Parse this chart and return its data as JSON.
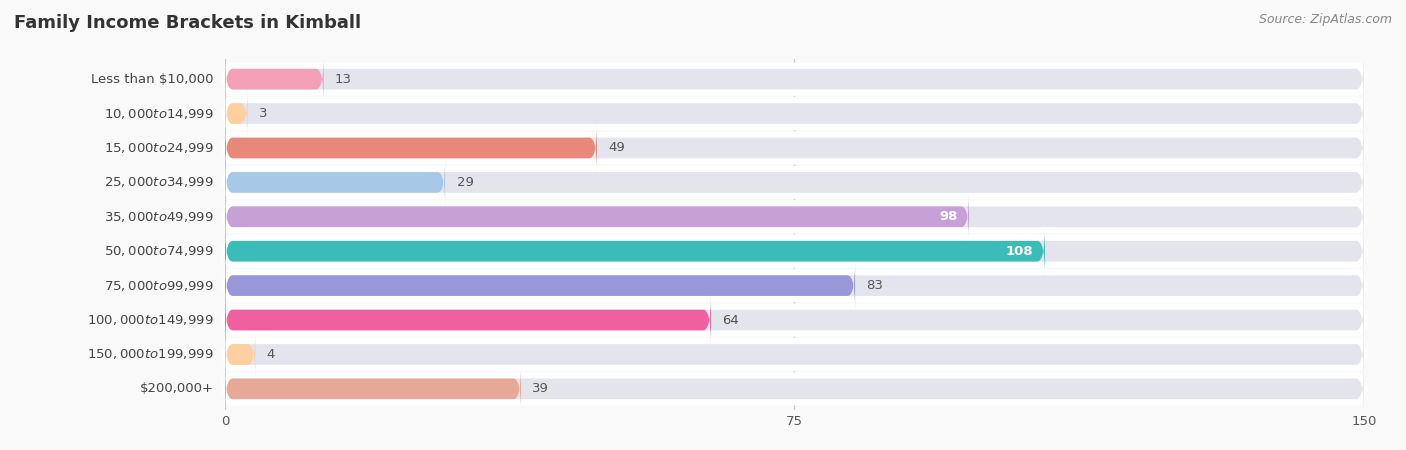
{
  "title": "Family Income Brackets in Kimball",
  "source": "Source: ZipAtlas.com",
  "categories": [
    "Less than $10,000",
    "$10,000 to $14,999",
    "$15,000 to $24,999",
    "$25,000 to $34,999",
    "$35,000 to $49,999",
    "$50,000 to $74,999",
    "$75,000 to $99,999",
    "$100,000 to $149,999",
    "$150,000 to $199,999",
    "$200,000+"
  ],
  "values": [
    13,
    3,
    49,
    29,
    98,
    108,
    83,
    64,
    4,
    39
  ],
  "bar_colors": [
    "#F4A0B8",
    "#FECFA0",
    "#E8887A",
    "#A8C8E8",
    "#C8A0D8",
    "#3BBCB8",
    "#9898D8",
    "#F060A0",
    "#FECFA0",
    "#E8A898"
  ],
  "xlim": [
    0,
    150
  ],
  "xticks": [
    0,
    75,
    150
  ],
  "bar_bg_color": "#E4E4EC",
  "title_fontsize": 13,
  "source_fontsize": 9,
  "label_fontsize": 9.5,
  "value_fontsize": 9.5,
  "value_inside_threshold": 95
}
